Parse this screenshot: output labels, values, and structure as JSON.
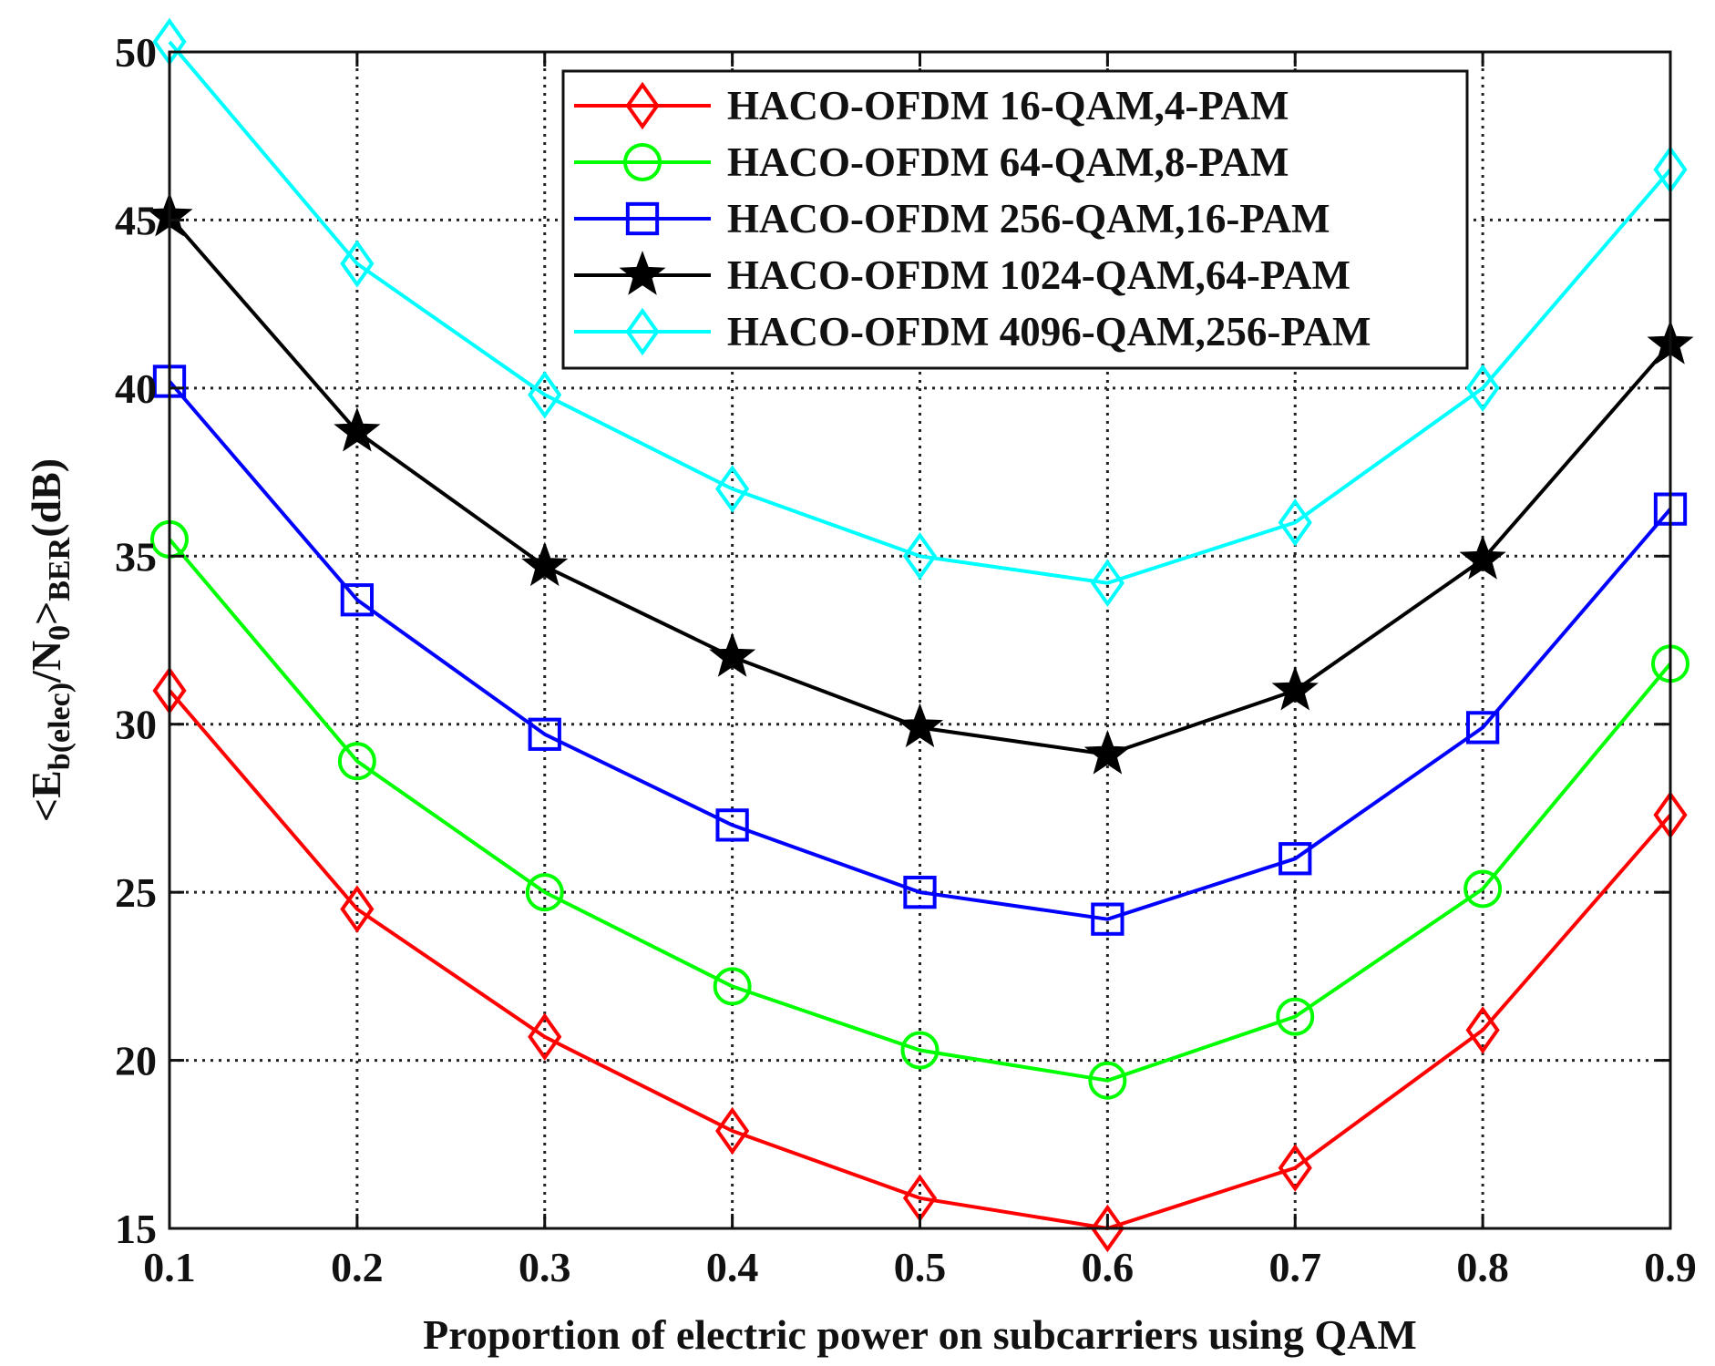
{
  "chart_data": {
    "type": "line",
    "title": "",
    "xlabel": "Proportion of electric power on subcarriers using QAM",
    "ylabel": {
      "lt": "<",
      "e": "E",
      "e_sub": "b(elec)",
      "slash": "/N",
      "n_sub": "0",
      "gt": ">",
      "gt_sub": "BER",
      "unit": "(dB)"
    },
    "x": [
      0.1,
      0.2,
      0.3,
      0.4,
      0.5,
      0.6,
      0.7,
      0.8,
      0.9
    ],
    "xlim": [
      0.1,
      0.9
    ],
    "ylim": [
      15,
      50
    ],
    "xticks": [
      0.1,
      0.2,
      0.3,
      0.4,
      0.5,
      0.6,
      0.7,
      0.8,
      0.9
    ],
    "yticks": [
      15,
      20,
      25,
      30,
      35,
      40,
      45,
      50
    ],
    "grid": true,
    "legend_position": "top-right",
    "series": [
      {
        "name": "HACO-OFDM 16-QAM,4-PAM",
        "color": "#ff0000",
        "marker": "diamond",
        "values": [
          31.0,
          24.5,
          20.7,
          17.9,
          15.9,
          15.0,
          16.8,
          20.9,
          27.3
        ]
      },
      {
        "name": "HACO-OFDM 64-QAM,8-PAM",
        "color": "#00ff00",
        "marker": "circle",
        "values": [
          35.5,
          28.9,
          25.0,
          22.2,
          20.3,
          19.4,
          21.3,
          25.1,
          31.8
        ]
      },
      {
        "name": "HACO-OFDM 256-QAM,16-PAM",
        "color": "#0000ff",
        "marker": "square",
        "values": [
          40.2,
          33.7,
          29.7,
          27.0,
          25.0,
          24.2,
          26.0,
          29.9,
          36.4
        ]
      },
      {
        "name": "HACO-OFDM 1024-QAM,64-PAM",
        "color": "#000000",
        "marker": "star",
        "values": [
          45.1,
          38.7,
          34.7,
          32.0,
          29.9,
          29.1,
          31.0,
          34.9,
          41.3
        ]
      },
      {
        "name": "HACO-OFDM 4096-QAM,256-PAM",
        "color": "#00ffff",
        "marker": "diamond",
        "values": [
          50.3,
          43.7,
          39.8,
          37.0,
          35.0,
          34.2,
          36.0,
          40.0,
          46.5
        ]
      }
    ]
  }
}
